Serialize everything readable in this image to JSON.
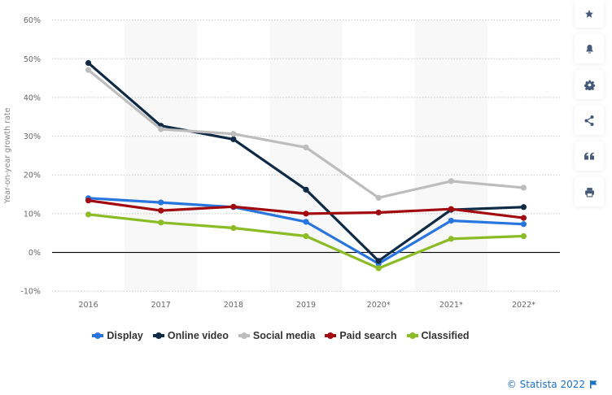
{
  "chart_data": {
    "type": "line",
    "title": "",
    "xlabel": "",
    "ylabel": "Year-on-year growth rate",
    "categories": [
      "2016",
      "2017",
      "2018",
      "2019",
      "2020*",
      "2021*",
      "2022*"
    ],
    "ylim": [
      -10,
      60
    ],
    "yticks": [
      -10,
      0,
      10,
      20,
      30,
      40,
      50,
      60
    ],
    "ytick_labels": [
      "-10%",
      "0%",
      "10%",
      "20%",
      "30%",
      "40%",
      "50%",
      "60%"
    ],
    "grid": true,
    "legend_position": "bottom",
    "series": [
      {
        "name": "Display",
        "color": "#2876dd",
        "values": [
          14.0,
          12.9,
          11.7,
          7.9,
          -2.9,
          8.2,
          7.3
        ]
      },
      {
        "name": "Online video",
        "color": "#0f2a44",
        "values": [
          48.9,
          32.7,
          29.2,
          16.2,
          -2.2,
          11.0,
          11.7
        ]
      },
      {
        "name": "Social media",
        "color": "#bdbdbd",
        "values": [
          47.1,
          31.8,
          30.6,
          27.1,
          14.1,
          18.4,
          16.7
        ]
      },
      {
        "name": "Paid search",
        "color": "#a10a0f",
        "values": [
          13.4,
          10.8,
          11.8,
          10.0,
          10.3,
          11.2,
          8.9
        ]
      },
      {
        "name": "Classified",
        "color": "#8cbc25",
        "values": [
          9.8,
          7.7,
          6.3,
          4.2,
          -4.1,
          3.5,
          4.2
        ]
      }
    ]
  },
  "sidebar": {
    "buttons": [
      {
        "icon": "star-icon",
        "glyph": "★"
      },
      {
        "icon": "bell-icon",
        "glyph": "🔔"
      },
      {
        "icon": "gear-icon",
        "glyph": "⚙"
      },
      {
        "icon": "share-icon",
        "glyph": "<"
      },
      {
        "icon": "quote-icon",
        "glyph": "❝"
      },
      {
        "icon": "print-icon",
        "glyph": "⎙"
      }
    ]
  },
  "footer": {
    "credit": "© Statista 2022"
  }
}
